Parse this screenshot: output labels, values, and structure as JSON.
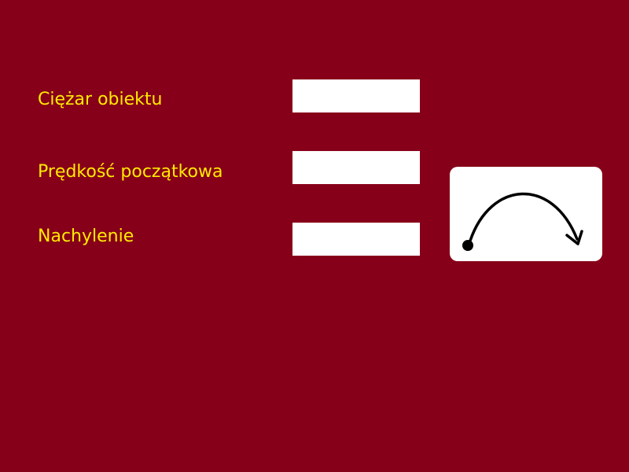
{
  "theme": {
    "background": "#870019",
    "label_color": "#FFEB00",
    "field_background": "#FFFFFF",
    "button_background": "#FFFFFF",
    "icon_color": "#000000"
  },
  "form": {
    "weight_label": "Ciężar obiektu",
    "weight_value": "",
    "velocity_label": "Prędkość początkowa",
    "velocity_value": "",
    "angle_label": "Nachylenie",
    "angle_value": ""
  },
  "launch_button": {
    "icon": "projectile-trajectory-icon"
  }
}
